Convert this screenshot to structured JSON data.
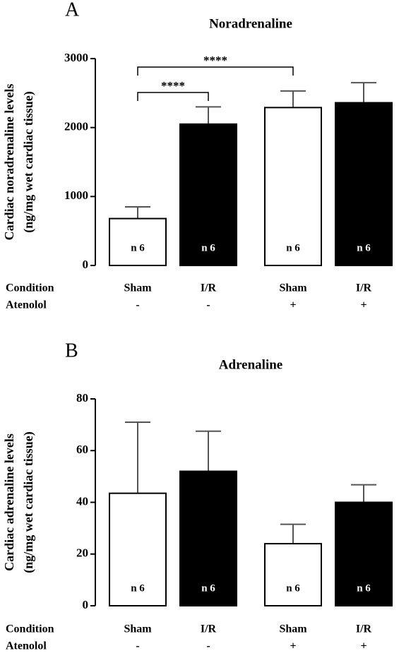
{
  "chart_data": [
    {
      "type": "bar",
      "panel_label": "A",
      "title": "Noradrenaline",
      "y_label": [
        "Cardiac noradrenaline levels",
        "(ng/mg wet cardiac tissue)"
      ],
      "categories_label": "Condition",
      "categories": [
        "Sham",
        "I/R",
        "Sham",
        "I/R"
      ],
      "atenolol_label": "Atenolol",
      "atenolol": [
        "-",
        "-",
        "+",
        "+"
      ],
      "values": [
        680,
        2050,
        2290,
        2360
      ],
      "errors": [
        170,
        250,
        240,
        290
      ],
      "colors": [
        "#ffffff",
        "#000000",
        "#ffffff",
        "#000000"
      ],
      "bar_labels": [
        "n 6",
        "n 6",
        "n 6",
        "n 6"
      ],
      "significance": [
        {
          "from": 0,
          "to": 1,
          "label": "****"
        },
        {
          "from": 0,
          "to": 2,
          "label": "****"
        }
      ],
      "ylim": [
        0,
        3000
      ],
      "yticks": [
        0,
        1000,
        2000,
        3000
      ]
    },
    {
      "type": "bar",
      "panel_label": "B",
      "title": "Adrenaline",
      "y_label": [
        "Cardiac adrenaline levels",
        "(ng/mg wet cardiac tissue)"
      ],
      "categories_label": "Condition",
      "categories": [
        "Sham",
        "I/R",
        "Sham",
        "I/R"
      ],
      "atenolol_label": "Atenolol",
      "atenolol": [
        "-",
        "-",
        "+",
        "+"
      ],
      "values": [
        43.5,
        52,
        24,
        40
      ],
      "errors": [
        27.5,
        15.5,
        7.5,
        6.8
      ],
      "colors": [
        "#ffffff",
        "#000000",
        "#ffffff",
        "#000000"
      ],
      "bar_labels": [
        "n 6",
        "n 6",
        "n 6",
        "n 6"
      ],
      "ylim": [
        0,
        80
      ],
      "yticks": [
        0,
        20,
        40,
        60,
        80
      ]
    }
  ]
}
